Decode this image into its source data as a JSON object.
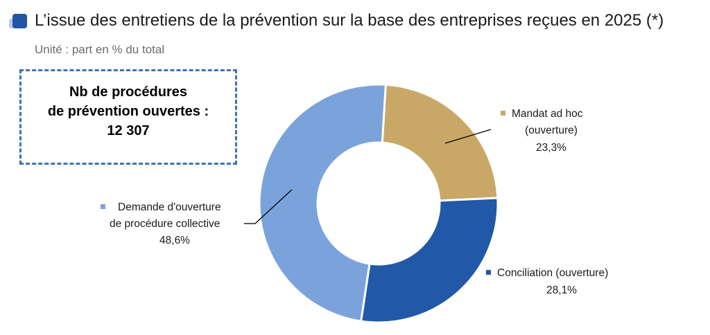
{
  "header": {
    "title": "L’issue des entretiens de la prévention sur la base des entreprises reçues en 2025 (*)",
    "subtitle": "Unité : part en % du total"
  },
  "info_box": {
    "line1": "Nb de procédures",
    "line2": "de prévention ouvertes :",
    "line3": "12 307"
  },
  "colors": {
    "mandat": "#c9a867",
    "conciliation": "#2158a8",
    "demande": "#7ba3db",
    "title_bullet": "#1f56a5"
  },
  "chart_data": {
    "type": "pie",
    "donut": true,
    "title": "L’issue des entretiens de la prévention sur la base des entreprises reçues en 2025 (*)",
    "subtitle": "Unité : part en % du total",
    "slices": [
      {
        "key": "mandat",
        "label_lines": [
          "Mandat ad hoc",
          "(ouverture)"
        ],
        "value": 23.3,
        "value_label": "23,3%"
      },
      {
        "key": "conciliation",
        "label_lines": [
          "Conciliation (ouverture)"
        ],
        "value": 28.1,
        "value_label": "28,1%"
      },
      {
        "key": "demande",
        "label_lines": [
          "Demande d'ouverture",
          "de procédure collective"
        ],
        "value": 48.6,
        "value_label": "48,6%"
      }
    ]
  }
}
